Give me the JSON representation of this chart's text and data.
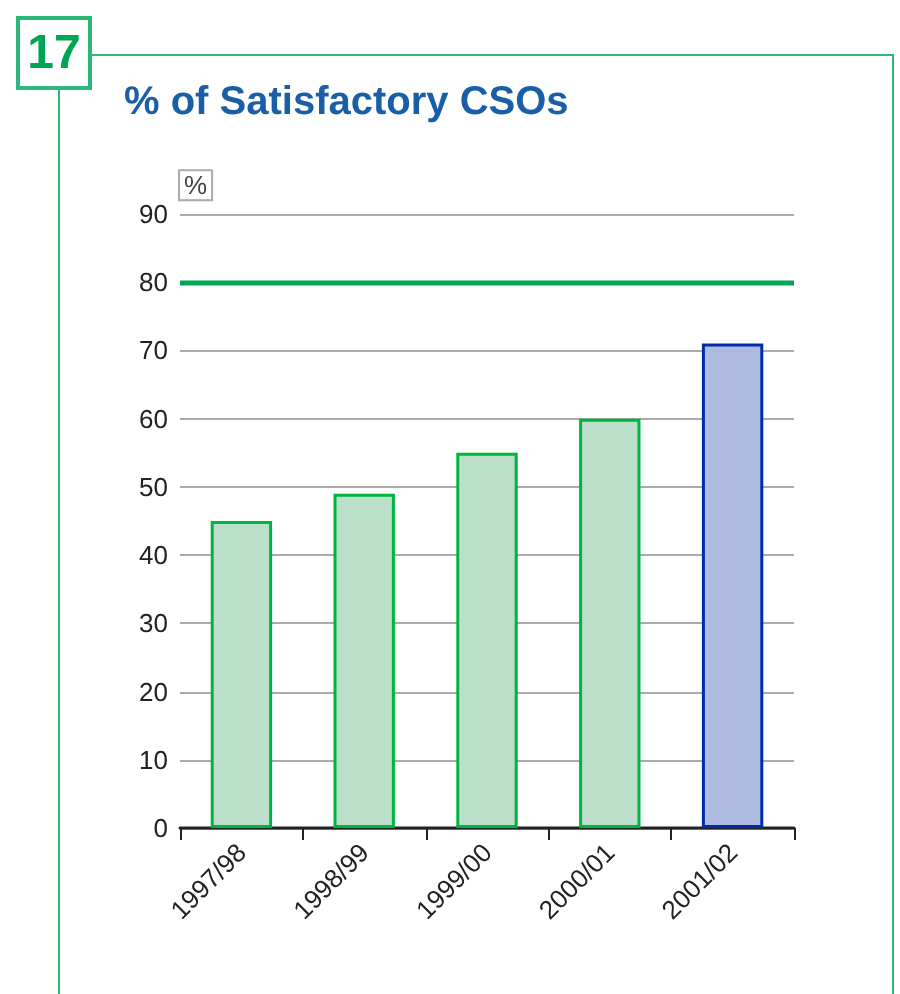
{
  "chart_data": {
    "type": "bar",
    "title": "% of Satisfactory CSOs",
    "ylabel": "%",
    "annotations": [
      "17"
    ],
    "categories": [
      "1997/98",
      "1998/99",
      "1999/00",
      "2000/01",
      "2001/02"
    ],
    "values": [
      45,
      49,
      55,
      60,
      71
    ],
    "colors": [
      "#bbdfc8",
      "#bbdfc8",
      "#bbdfc8",
      "#bbdfc8",
      "#aebbe0"
    ],
    "ylim": [
      0,
      90
    ],
    "yticks": [
      0,
      10,
      20,
      30,
      40,
      50,
      60,
      70,
      80,
      90
    ],
    "grid": "y",
    "ref_lines": [
      {
        "axis": "y",
        "value": 80,
        "color": "#00a651"
      }
    ]
  }
}
